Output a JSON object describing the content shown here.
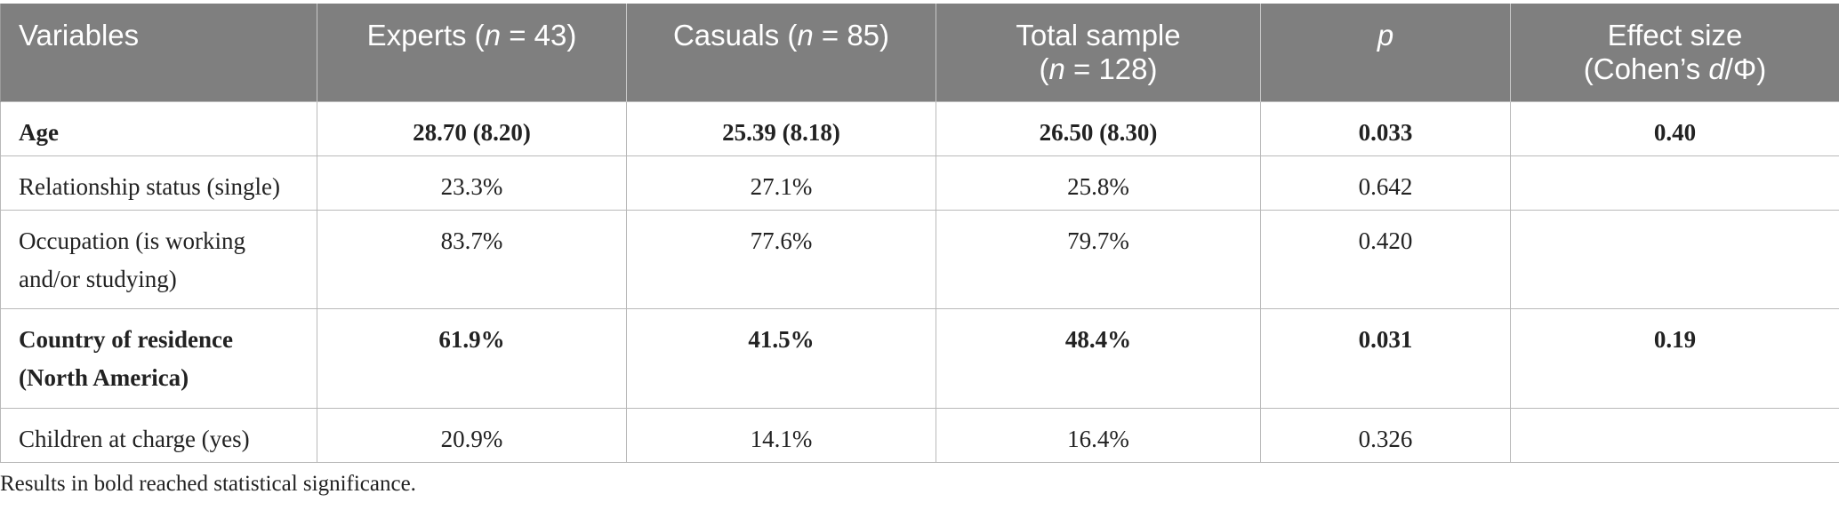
{
  "header": {
    "variables": "Variables",
    "experts": {
      "label": "Experts (",
      "n": "n",
      "rest": " = 43)"
    },
    "casuals": {
      "label": "Casuals (",
      "n": "n",
      "rest": " = 85)"
    },
    "total": {
      "line1": "Total sample",
      "open": "(",
      "n": "n",
      "rest": " = 128)"
    },
    "p": "p",
    "effect": {
      "line1": "Effect size",
      "line2a": "(Cohen’s ",
      "d": "d",
      "line2b": "/Φ)"
    }
  },
  "rows": [
    {
      "variable": "Age",
      "experts": "28.70 (8.20)",
      "casuals": "25.39 (8.18)",
      "total": "26.50 (8.30)",
      "p": "0.033",
      "effect": "0.40",
      "bold": true
    },
    {
      "variable": "Relationship status (single)",
      "experts": "23.3%",
      "casuals": "27.1%",
      "total": "25.8%",
      "p": "0.642",
      "effect": "",
      "bold": false
    },
    {
      "variable": "Occupation (is working and/or studying)",
      "experts": "83.7%",
      "casuals": "77.6%",
      "total": "79.7%",
      "p": "0.420",
      "effect": "",
      "bold": false
    },
    {
      "variable": "Country of residence (North America)",
      "experts": "61.9%",
      "casuals": "41.5%",
      "total": "48.4%",
      "p": "0.031",
      "effect": "0.19",
      "bold": true
    },
    {
      "variable": "Children at charge (yes)",
      "experts": "20.9%",
      "casuals": "14.1%",
      "total": "16.4%",
      "p": "0.326",
      "effect": "",
      "bold": false
    }
  ],
  "footnote": "Results in bold reached statistical significance."
}
